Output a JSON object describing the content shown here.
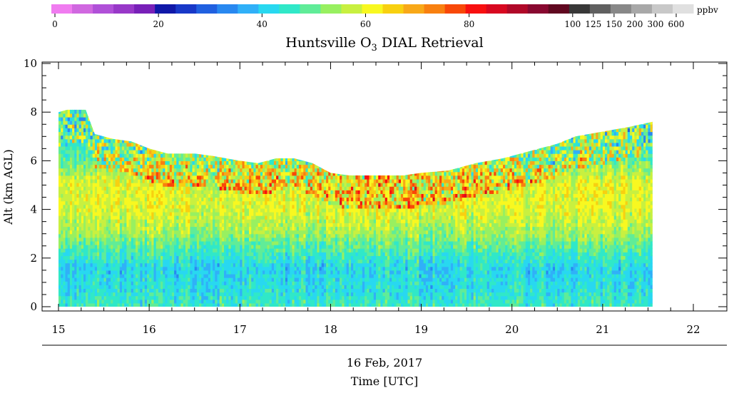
{
  "chart_data": {
    "type": "heatmap",
    "title": "Huntsville O",
    "title_sub": "3",
    "title_rest": " DIAL Retrieval",
    "ylabel": "Alt (km AGL)",
    "xlabel_date": "16 Feb, 2017",
    "xlabel": "Time [UTC]",
    "xlim": [
      15,
      22
    ],
    "ylim": [
      0,
      10
    ],
    "x_ticks": [
      "15",
      "16",
      "17",
      "18",
      "19",
      "20",
      "21",
      "22"
    ],
    "y_ticks": [
      "0",
      "2",
      "4",
      "6",
      "8",
      "10"
    ],
    "colorbar": {
      "unit": "ppbv",
      "tick_labels": [
        "0",
        "20",
        "40",
        "60",
        "80",
        "100",
        "125",
        "150",
        "200",
        "300",
        "600"
      ],
      "colors": [
        "#f07cf0",
        "#d068e0",
        "#b050d8",
        "#9838c8",
        "#7820b8",
        "#1018a8",
        "#1838c8",
        "#2060e0",
        "#2888f0",
        "#30b0f8",
        "#28d8f0",
        "#30e8c8",
        "#60ec98",
        "#98f060",
        "#c8f040",
        "#f8f820",
        "#f8d010",
        "#f8a818",
        "#f88010",
        "#f84808",
        "#f81010",
        "#d80820",
        "#b00828",
        "#880830",
        "#600820",
        "#383838",
        "#606060",
        "#888888",
        "#a8a8a8",
        "#c8c8c8",
        "#e0e0e0"
      ]
    },
    "data_range": {
      "time_start": 15.0,
      "time_end": 21.55
    },
    "top_of_retrieval_km": [
      [
        15.0,
        8.0
      ],
      [
        15.1,
        8.1
      ],
      [
        15.3,
        8.1
      ],
      [
        15.4,
        7.1
      ],
      [
        15.6,
        6.9
      ],
      [
        15.8,
        6.8
      ],
      [
        16.0,
        6.5
      ],
      [
        16.2,
        6.3
      ],
      [
        16.5,
        6.3
      ],
      [
        16.7,
        6.2
      ],
      [
        17.0,
        6.0
      ],
      [
        17.2,
        5.9
      ],
      [
        17.4,
        6.1
      ],
      [
        17.6,
        6.1
      ],
      [
        17.8,
        5.9
      ],
      [
        18.0,
        5.5
      ],
      [
        18.2,
        5.4
      ],
      [
        18.5,
        5.4
      ],
      [
        18.8,
        5.4
      ],
      [
        19.0,
        5.5
      ],
      [
        19.3,
        5.6
      ],
      [
        19.6,
        5.9
      ],
      [
        19.9,
        6.1
      ],
      [
        20.2,
        6.4
      ],
      [
        20.5,
        6.7
      ],
      [
        20.7,
        7.0
      ],
      [
        21.0,
        7.2
      ],
      [
        21.3,
        7.4
      ],
      [
        21.55,
        7.6
      ]
    ],
    "layers": [
      {
        "alt": 0.1,
        "ppbv": 46,
        "color": "#60ec98"
      },
      {
        "alt": 0.5,
        "ppbv": 44,
        "color": "#30e8c8"
      },
      {
        "alt": 1.5,
        "ppbv": 42,
        "color": "#28d8f0"
      },
      {
        "alt": 2.5,
        "ppbv": 50,
        "color": "#98f060"
      },
      {
        "alt": 3.0,
        "ppbv": 55,
        "color": "#c8f040"
      },
      {
        "alt": 4.0,
        "ppbv": 60,
        "color": "#f8f820"
      },
      {
        "alt": 5.0,
        "ppbv": 60,
        "color": "#f8f820"
      },
      {
        "alt": 6.0,
        "ppbv": 50,
        "color": "#98f060"
      },
      {
        "alt": 7.0,
        "ppbv": 45,
        "color": "#30e8c8"
      }
    ]
  }
}
